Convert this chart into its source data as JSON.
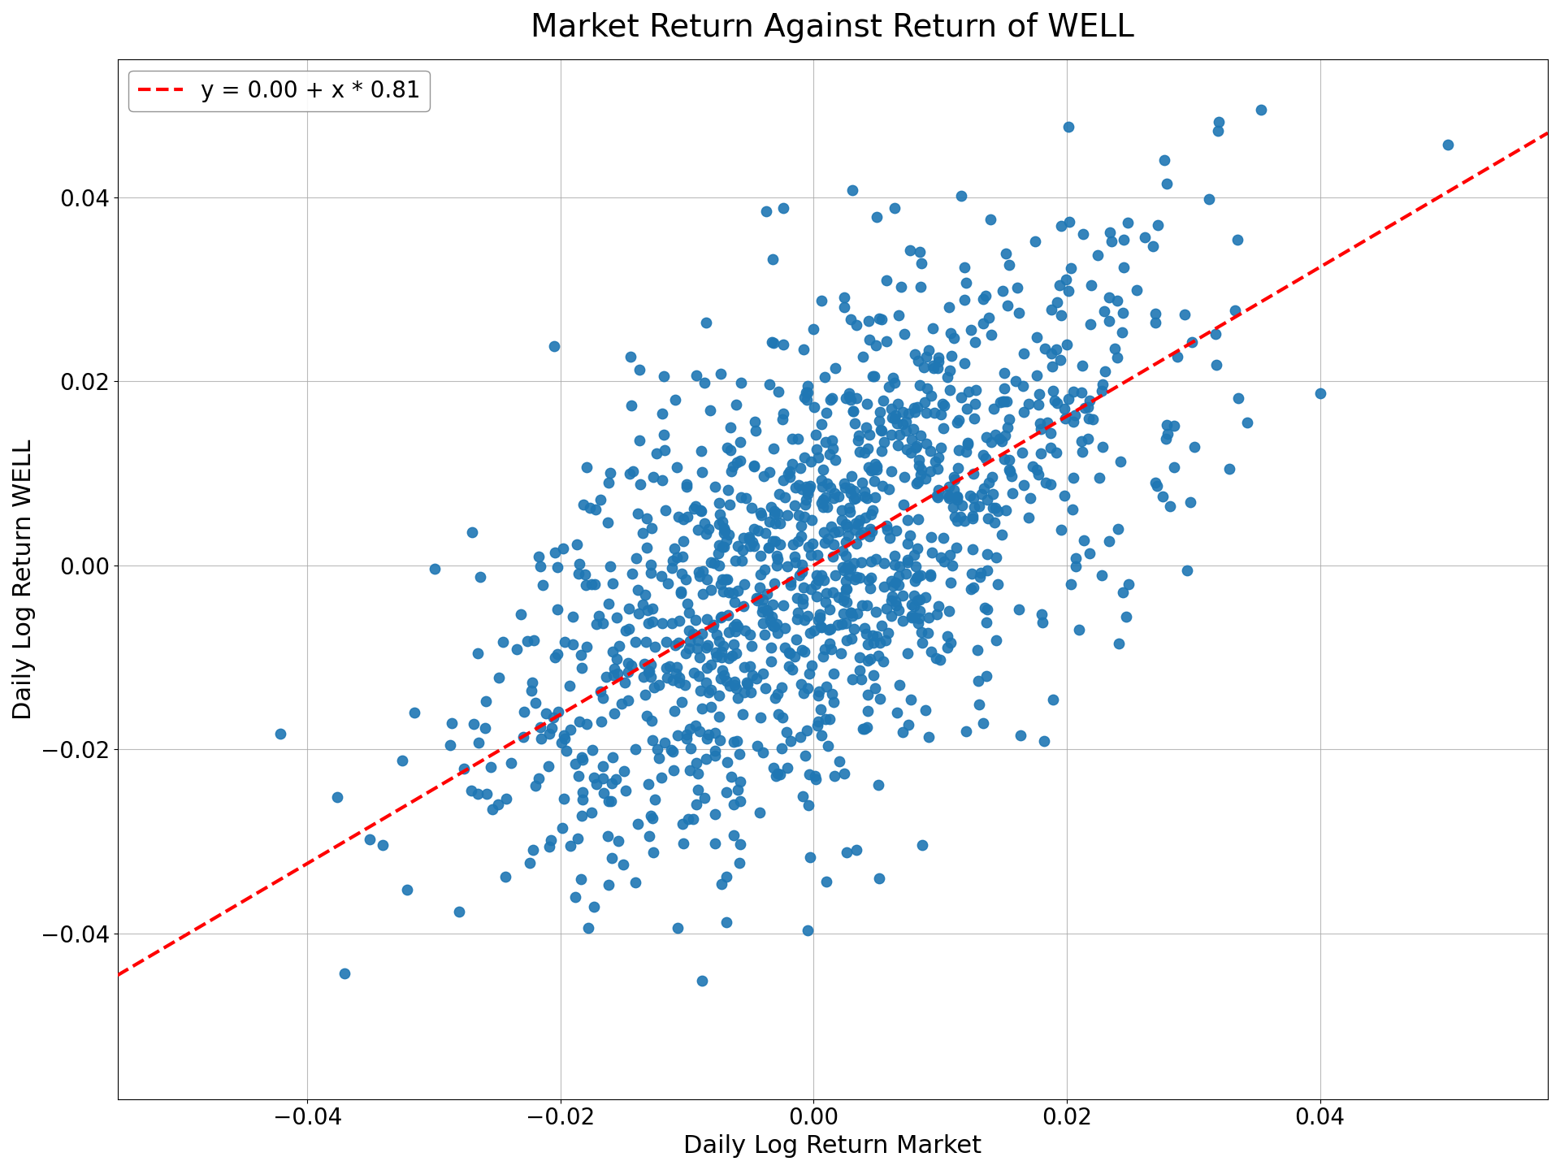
{
  "title": "Market Return Against Return of WELL",
  "xlabel": "Daily Log Return Market",
  "ylabel": "Daily Log Return WELL",
  "intercept": 0.0,
  "slope": 0.81,
  "legend_label": "y = 0.00 + x * 0.81",
  "scatter_color": "#1f77b4",
  "line_color": "red",
  "xlim": [
    -0.055,
    0.058
  ],
  "ylim": [
    -0.058,
    0.055
  ],
  "dot_size": 80,
  "seed": 42,
  "n_points": 1258,
  "market_std": 0.013,
  "well_noise_std": 0.013,
  "background_color": "#ffffff",
  "grid_color": "#aaaaaa",
  "title_fontsize": 28,
  "label_fontsize": 22,
  "tick_fontsize": 20,
  "legend_fontsize": 20
}
